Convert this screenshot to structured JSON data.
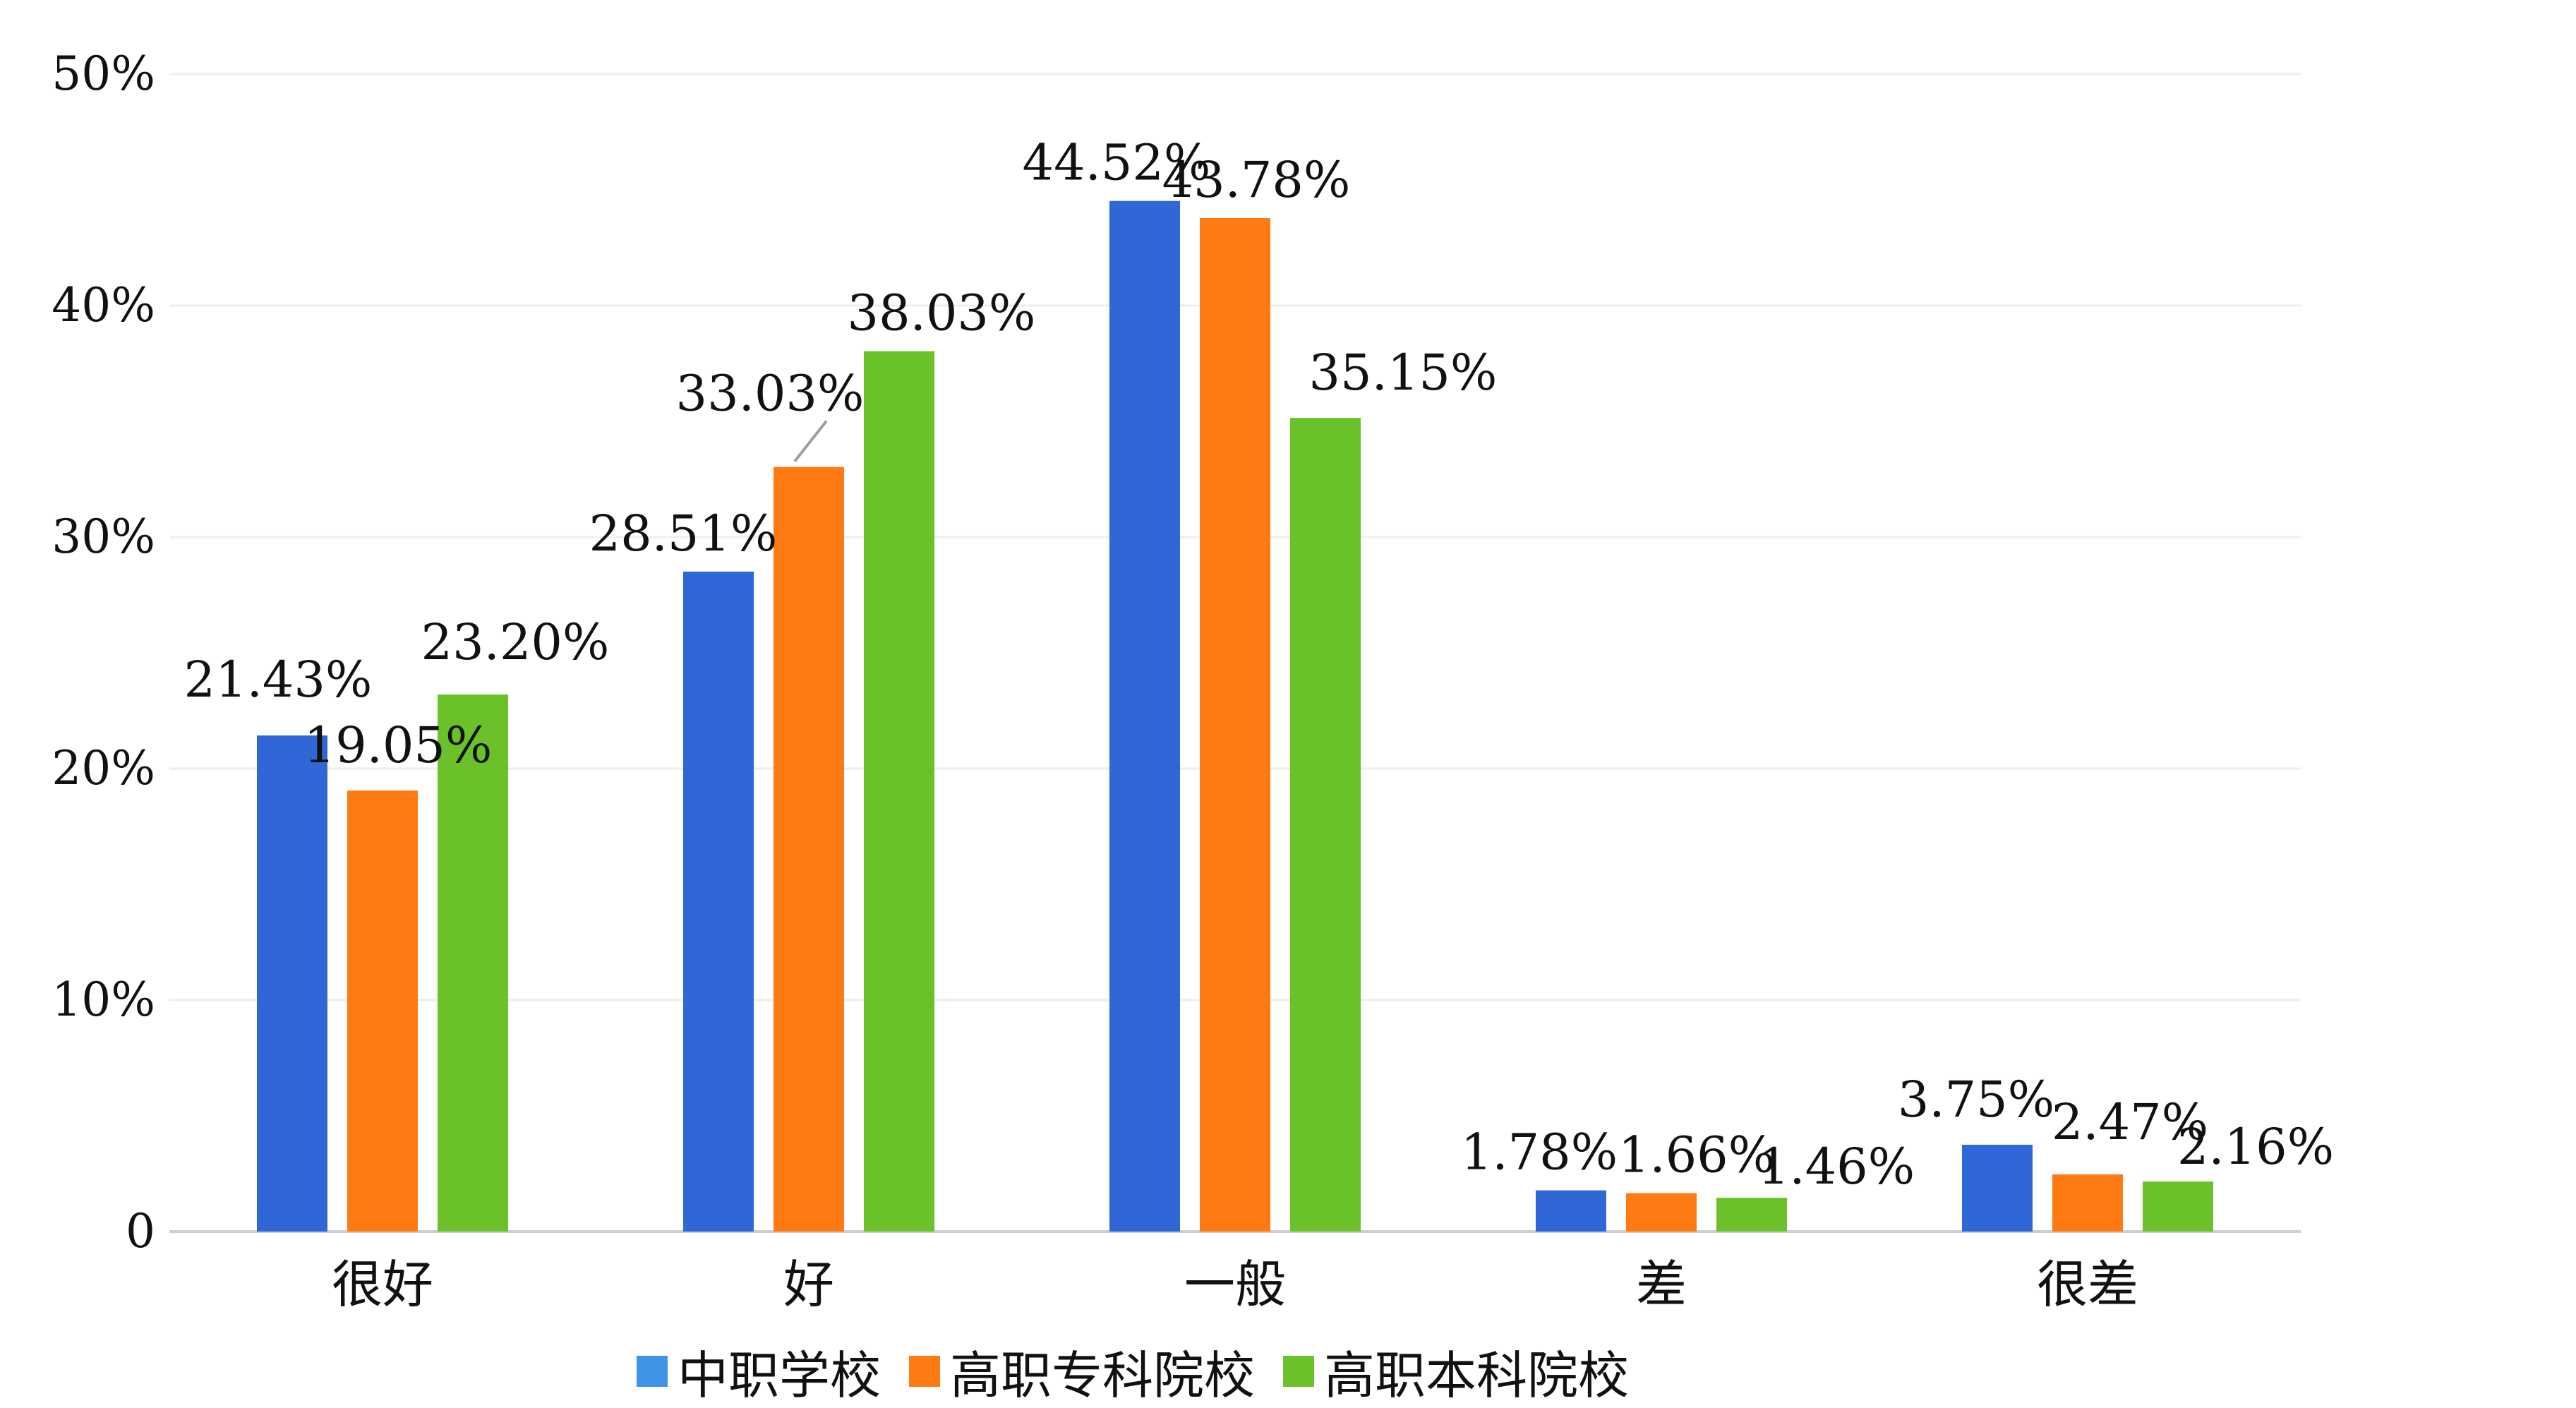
{
  "chart_data": {
    "type": "bar",
    "title": "",
    "xlabel": "",
    "ylabel": "",
    "ylim": [
      0,
      50
    ],
    "yticks": [
      {
        "value": 0,
        "label": "0"
      },
      {
        "value": 10,
        "label": "10%"
      },
      {
        "value": 20,
        "label": "20%"
      },
      {
        "value": 30,
        "label": "30%"
      },
      {
        "value": 40,
        "label": "40%"
      },
      {
        "value": 50,
        "label": "50%"
      }
    ],
    "categories": [
      "很好",
      "好",
      "一般",
      "差",
      "很差"
    ],
    "series": [
      {
        "name": "中职学校",
        "color": "#2f68d6",
        "values": [
          21.43,
          28.51,
          44.52,
          1.78,
          3.75
        ],
        "labels": [
          "21.43%",
          "28.51%",
          "44.52%",
          "1.78%",
          "3.75%"
        ]
      },
      {
        "name": "高职专科院校",
        "color": "#ff7a12",
        "values": [
          19.05,
          33.03,
          43.78,
          1.66,
          2.47
        ],
        "labels": [
          "19.05%",
          "33.03%",
          "43.78%",
          "1.66%",
          "2.47%"
        ]
      },
      {
        "name": "高职本科院校",
        "color": "#6bc12a",
        "values": [
          23.2,
          38.03,
          35.15,
          1.46,
          2.16
        ],
        "labels": [
          "23.20%",
          "38.03%",
          "35.15%",
          "1.46%",
          "2.16%"
        ]
      }
    ],
    "grid": true,
    "legend_position": "bottom"
  },
  "legend": {
    "swatch_colors": [
      "#3f94e6",
      "#ff7a12",
      "#6bc12a"
    ]
  }
}
